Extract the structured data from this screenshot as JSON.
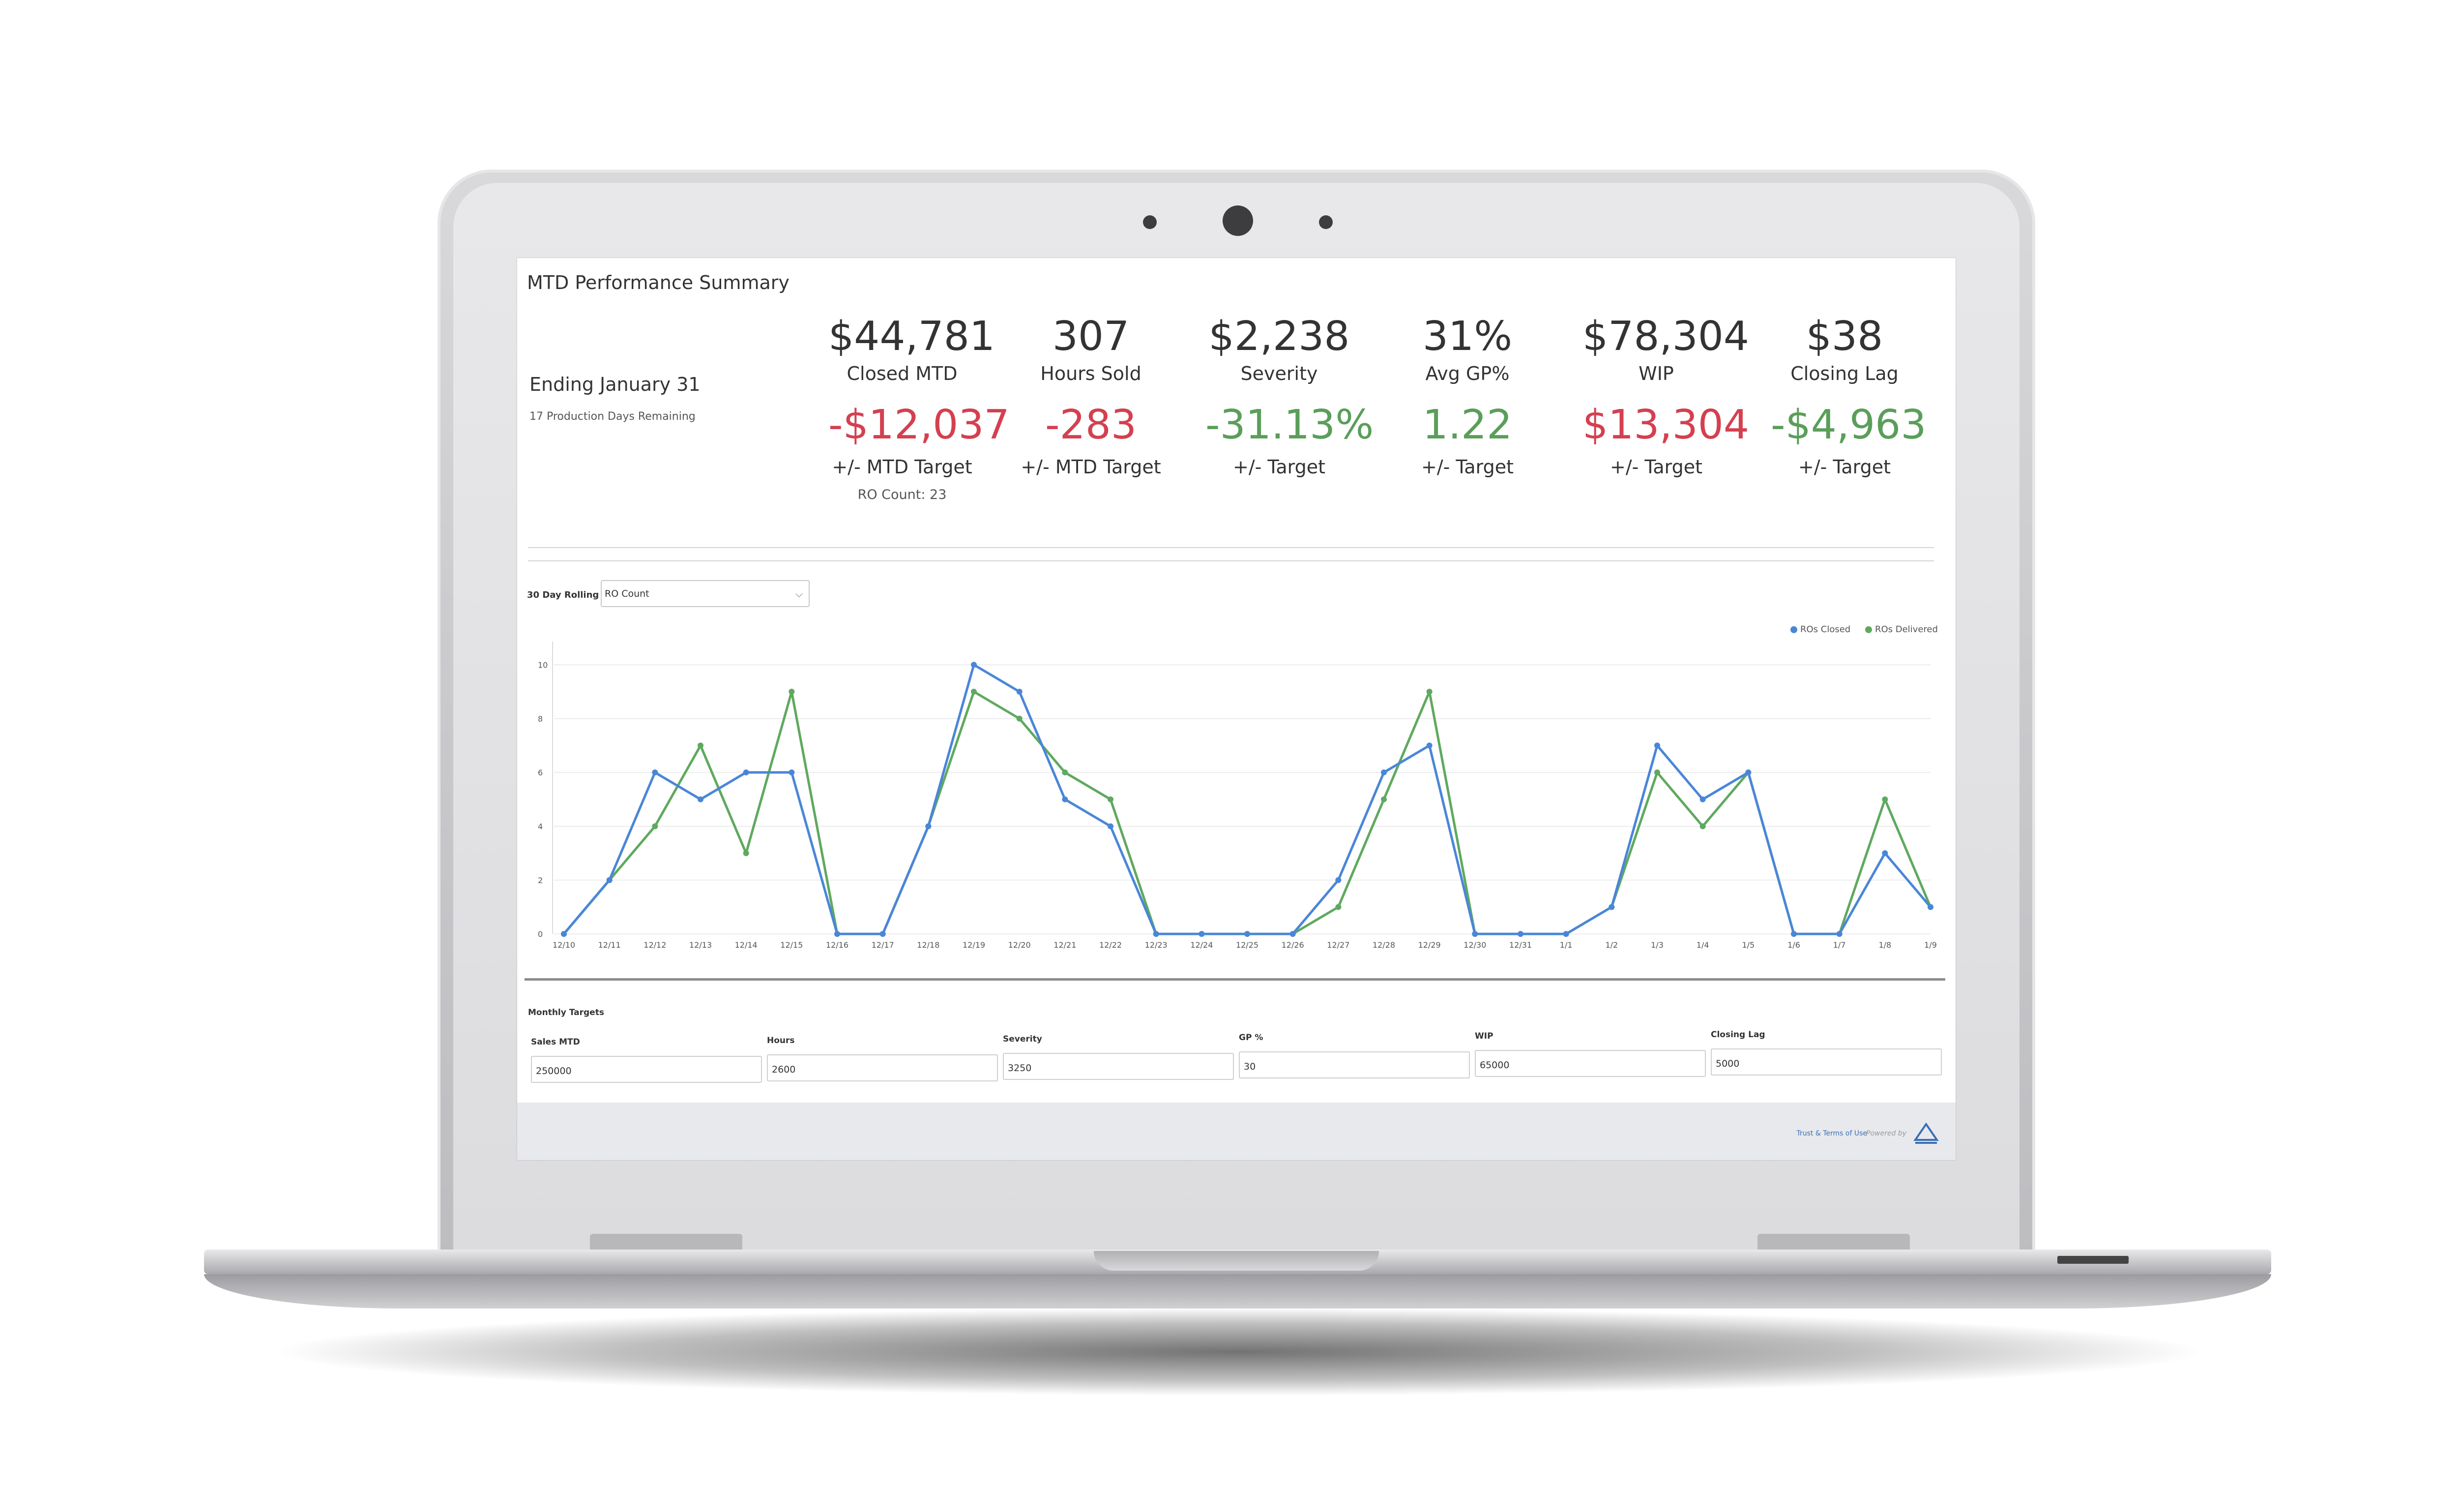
{
  "dashboard": {
    "title": "MTD Performance Summary",
    "ending": "Ending January 31",
    "production_days": "17 Production Days Remaining"
  },
  "kpis": [
    {
      "value": "$44,781",
      "label": "Closed MTD",
      "delta": "-$12,037",
      "delta_status": "negative",
      "sub": "+/- MTD Target",
      "extra": "RO Count: 23"
    },
    {
      "value": "307",
      "label": "Hours Sold",
      "delta": "-283",
      "delta_status": "negative",
      "sub": "+/- MTD Target"
    },
    {
      "value": "$2,238",
      "label": "Severity",
      "delta": "-31.13%",
      "delta_status": "positive",
      "sub": "+/- Target"
    },
    {
      "value": "31%",
      "label": "Avg GP%",
      "delta": "1.22",
      "delta_status": "positive",
      "sub": "+/- Target"
    },
    {
      "value": "$78,304",
      "label": "WIP",
      "delta": "$13,304",
      "delta_status": "negative",
      "sub": "+/- Target"
    },
    {
      "value": "$38",
      "label": "Closing Lag",
      "delta": "-$4,963",
      "delta_status": "positive",
      "sub": "+/- Target"
    }
  ],
  "rolling": {
    "label": "30 Day Rolling :",
    "selected": "RO Count"
  },
  "chart_data": {
    "type": "line",
    "categories": [
      "12/10",
      "12/11",
      "12/12",
      "12/13",
      "12/14",
      "12/15",
      "12/16",
      "12/17",
      "12/18",
      "12/19",
      "12/20",
      "12/21",
      "12/22",
      "12/23",
      "12/24",
      "12/25",
      "12/26",
      "12/27",
      "12/28",
      "12/29",
      "12/30",
      "12/31",
      "1/1",
      "1/2",
      "1/3",
      "1/4",
      "1/5",
      "1/6",
      "1/7",
      "1/8",
      "1/9"
    ],
    "series": [
      {
        "name": "ROs Closed",
        "color": "#4a86d8",
        "values": [
          0,
          2,
          6,
          5,
          6,
          6,
          0,
          0,
          4,
          10,
          9,
          5,
          4,
          0,
          0,
          0,
          0,
          2,
          6,
          7,
          0,
          0,
          0,
          1,
          7,
          5,
          6,
          0,
          0,
          3,
          1
        ]
      },
      {
        "name": "ROs Delivered",
        "color": "#5fa95f",
        "values": [
          0,
          2,
          4,
          7,
          3,
          9,
          0,
          0,
          4,
          9,
          8,
          6,
          5,
          0,
          0,
          0,
          0,
          1,
          5,
          9,
          0,
          0,
          0,
          1,
          6,
          4,
          6,
          0,
          0,
          5,
          1
        ]
      }
    ],
    "y_ticks": [
      "0",
      "2",
      "4",
      "6",
      "8",
      "10"
    ],
    "ylim": [
      0,
      10.5
    ],
    "grid": true,
    "legend": "top-right"
  },
  "targets": {
    "title": "Monthly Targets",
    "fields": [
      {
        "label": "Sales MTD",
        "value": "250000"
      },
      {
        "label": "Hours",
        "value": "2600"
      },
      {
        "label": "Severity",
        "value": "3250"
      },
      {
        "label": "GP %",
        "value": "30"
      },
      {
        "label": "WIP",
        "value": "65000"
      },
      {
        "label": "Closing Lag",
        "value": "5000"
      }
    ]
  },
  "footer": {
    "links": "Trust & Terms of Use",
    "powered": "Powered by"
  },
  "colors": {
    "negative": "#d44050",
    "positive": "#5a9e5a",
    "accent": "#4a86d8"
  }
}
